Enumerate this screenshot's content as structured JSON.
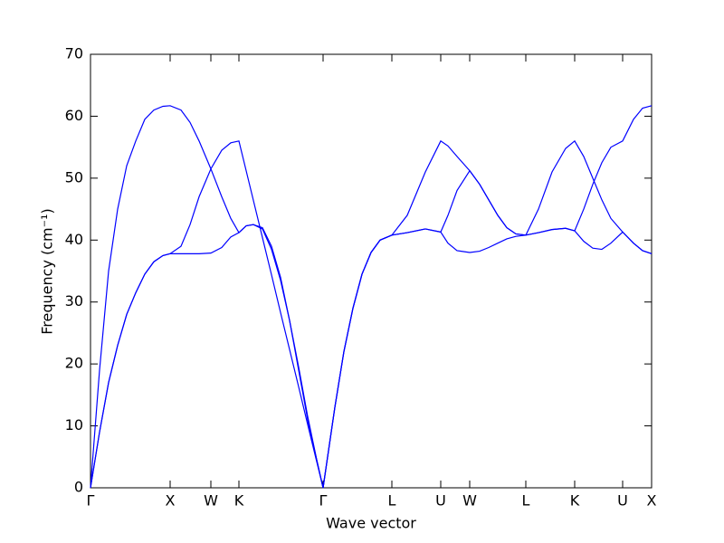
{
  "chart_data": {
    "type": "line",
    "x_label": "Wave vector",
    "y_label": "Frequency (cm⁻¹)",
    "xlim": [
      0,
      620
    ],
    "ylim": [
      0,
      70
    ],
    "yticks": [
      0,
      10,
      20,
      30,
      40,
      50,
      60,
      70
    ],
    "xticks": [
      {
        "value": 0,
        "label": "Γ"
      },
      {
        "value": 88,
        "label": "X"
      },
      {
        "value": 133,
        "label": "W"
      },
      {
        "value": 164,
        "label": "K"
      },
      {
        "value": 257,
        "label": "Γ"
      },
      {
        "value": 333,
        "label": "L"
      },
      {
        "value": 387,
        "label": "U"
      },
      {
        "value": 419,
        "label": "W"
      },
      {
        "value": 481,
        "label": "L"
      },
      {
        "value": 535,
        "label": "K"
      },
      {
        "value": 588,
        "label": "U"
      },
      {
        "value": 620,
        "label": "X"
      }
    ],
    "x": [
      0,
      10,
      20,
      30,
      40,
      50,
      60,
      70,
      80,
      88,
      100,
      110,
      120,
      133,
      145,
      155,
      164,
      172,
      180,
      190,
      200,
      210,
      220,
      230,
      240,
      250,
      257,
      270,
      280,
      290,
      300,
      310,
      320,
      333,
      350,
      370,
      387,
      395,
      405,
      419,
      430,
      440,
      450,
      460,
      470,
      481,
      495,
      510,
      525,
      535,
      545,
      555,
      565,
      575,
      588,
      600,
      610,
      620
    ],
    "series": [
      {
        "color": "#0000ff",
        "values": [
          0,
          19,
          35,
          45,
          52,
          56,
          59.5,
          61,
          61.6,
          61.7,
          61,
          59,
          56,
          51.5,
          47,
          43.5,
          41.2,
          42.3,
          42.5,
          42,
          39,
          34,
          27,
          19,
          11,
          4.5,
          0,
          13,
          22,
          29,
          34.5,
          38,
          40,
          40.8,
          41.2,
          41.8,
          41.3,
          44,
          48,
          51.2,
          49,
          46.5,
          44,
          42,
          41,
          40.8,
          41.2,
          41.7,
          41.9,
          41.5,
          45,
          49,
          52.5,
          55,
          56,
          59.5,
          61.3,
          61.7
        ]
      },
      {
        "color": "#0000ff",
        "values": [
          0,
          9,
          17,
          23,
          28,
          31.5,
          34.5,
          36.5,
          37.5,
          37.8,
          39,
          42.5,
          47,
          51.5,
          54.5,
          55.7,
          56,
          51.2,
          46.4,
          40.4,
          34.4,
          28.3,
          22.3,
          16.3,
          10.2,
          4.2,
          0,
          13,
          22,
          29,
          34.5,
          38,
          40,
          40.8,
          44,
          51,
          56,
          55.2,
          53.5,
          51.2,
          49,
          46.5,
          44,
          42,
          41,
          40.8,
          45,
          51,
          54.8,
          56,
          53.5,
          50,
          46.5,
          43.5,
          41.3,
          39.5,
          38.3,
          37.8
        ]
      },
      {
        "color": "#0000ff",
        "values": [
          0,
          9,
          17,
          23,
          28,
          31.5,
          34.5,
          36.5,
          37.5,
          37.8,
          37.8,
          37.8,
          37.8,
          37.9,
          38.8,
          40.5,
          41.2,
          42.3,
          42.5,
          41.8,
          38.5,
          33.5,
          27,
          19.5,
          11.5,
          4.5,
          0,
          13,
          22,
          29,
          34.5,
          38,
          40,
          40.8,
          41.2,
          41.8,
          41.3,
          39.5,
          38.3,
          38,
          38.2,
          38.8,
          39.5,
          40.2,
          40.6,
          40.8,
          41.2,
          41.7,
          41.9,
          41.5,
          39.8,
          38.7,
          38.5,
          39.5,
          41.3,
          39.5,
          38.3,
          37.8
        ]
      }
    ]
  }
}
